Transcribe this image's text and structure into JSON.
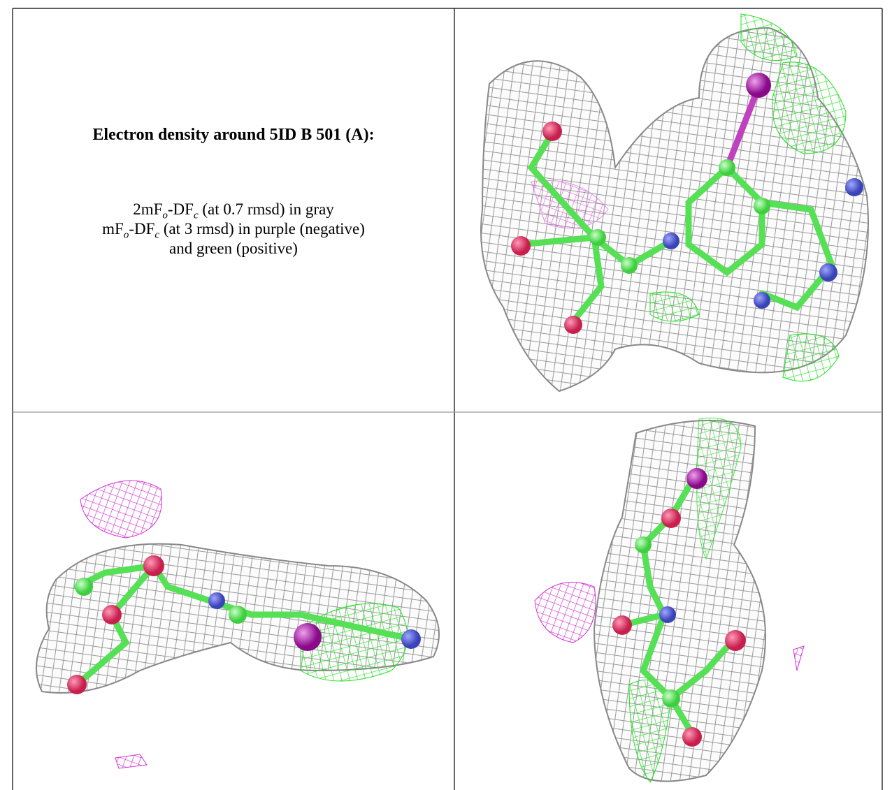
{
  "caption": {
    "title": "Electron density around 5ID B 501 (A):",
    "legend": [
      [
        "2mF",
        "o",
        "-DF",
        "c",
        " (at 0.7 rmsd) in gray"
      ],
      [
        "mF",
        "o",
        "-DF",
        "c",
        " (at 3 rmsd) in purple (negative)"
      ],
      [
        "and green (positive)"
      ]
    ]
  }
}
